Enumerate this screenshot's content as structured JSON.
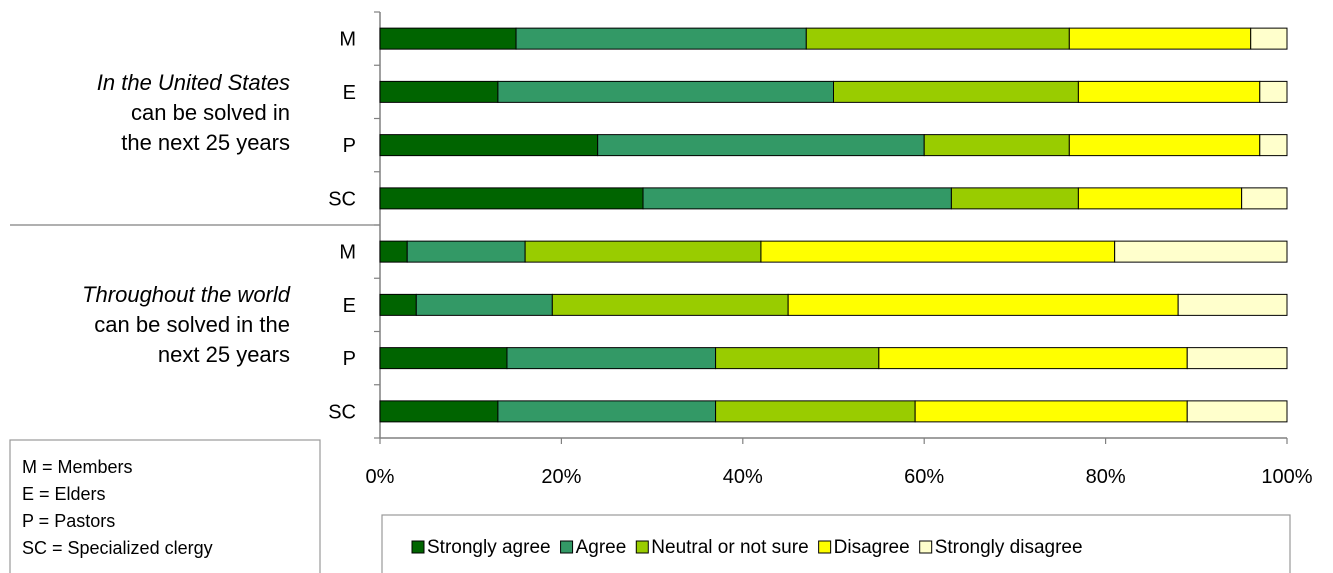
{
  "chart_data": {
    "type": "bar",
    "orientation": "horizontal",
    "stacked": "percent",
    "groups": [
      {
        "line1": "In the United States",
        "line2": "can be solved in",
        "line3": "the next 25 years"
      },
      {
        "line1": "Throughout the world",
        "line2": "can be solved in the",
        "line3": "next 25 years"
      }
    ],
    "categories": [
      "M",
      "E",
      "P",
      "SC",
      "M",
      "E",
      "P",
      "SC"
    ],
    "series": [
      {
        "name": "Strongly agree",
        "color": "#006400",
        "values": [
          15,
          13,
          24,
          29,
          3,
          4,
          14,
          13
        ]
      },
      {
        "name": "Agree",
        "color": "#339966",
        "values": [
          32,
          37,
          36,
          34,
          13,
          15,
          23,
          24
        ]
      },
      {
        "name": "Neutral or not sure",
        "color": "#99CC00",
        "values": [
          29,
          27,
          16,
          14,
          26,
          26,
          18,
          22
        ]
      },
      {
        "name": "Disagree",
        "color": "#FFFF00",
        "values": [
          20,
          20,
          21,
          18,
          39,
          43,
          34,
          30
        ]
      },
      {
        "name": "Strongly disagree",
        "color": "#FFFFCC",
        "values": [
          4,
          3,
          3,
          5,
          19,
          12,
          11,
          11
        ]
      }
    ],
    "xlim": [
      0,
      100
    ],
    "xticks": [
      "0%",
      "20%",
      "40%",
      "60%",
      "80%",
      "100%"
    ],
    "legend_position": "bottom",
    "key": [
      "M = Members",
      "E = Elders",
      "P = Pastors",
      "SC = Specialized clergy"
    ]
  }
}
